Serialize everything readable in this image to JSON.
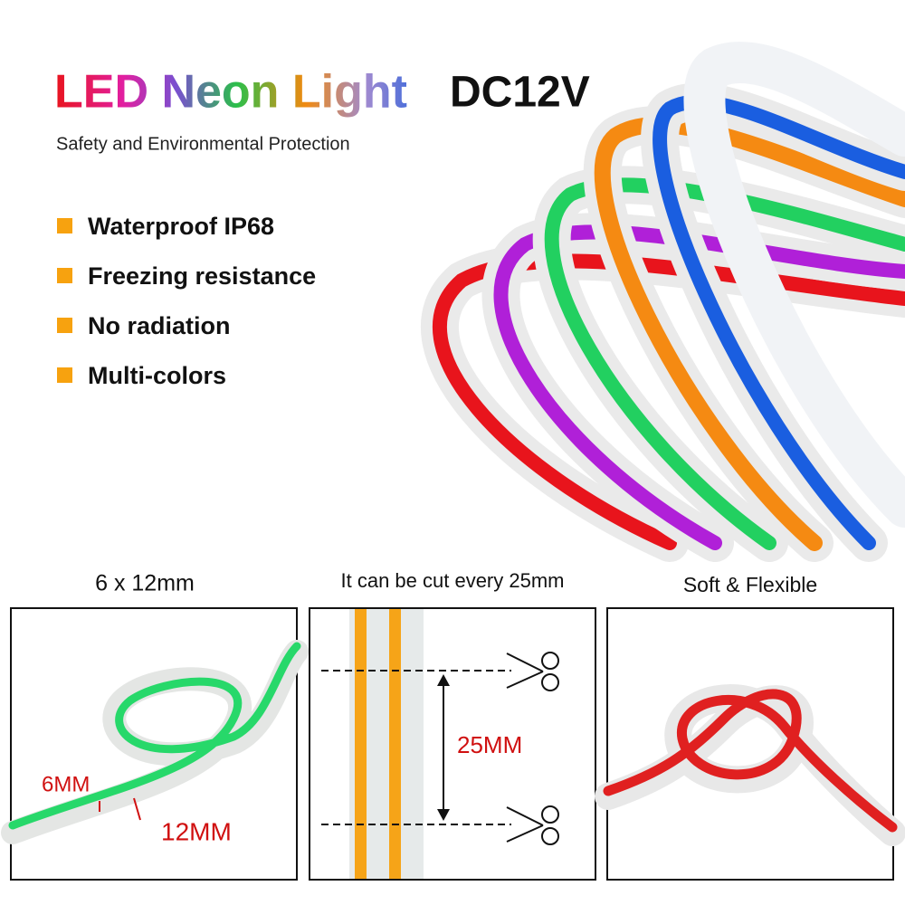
{
  "header": {
    "title": "LED Neon Light",
    "voltage": "DC12V",
    "subtitle": "Safety and Environmental Protection"
  },
  "features": [
    "Waterproof IP68",
    "Freezing resistance",
    "No radiation",
    "Multi-colors"
  ],
  "panels": [
    {
      "caption": "6 x 12mm",
      "labels": [
        "6MM",
        "12MM"
      ]
    },
    {
      "caption": "It can be cut every 25mm",
      "labels": [
        "25MM"
      ]
    },
    {
      "caption": "Soft & Flexible"
    }
  ]
}
